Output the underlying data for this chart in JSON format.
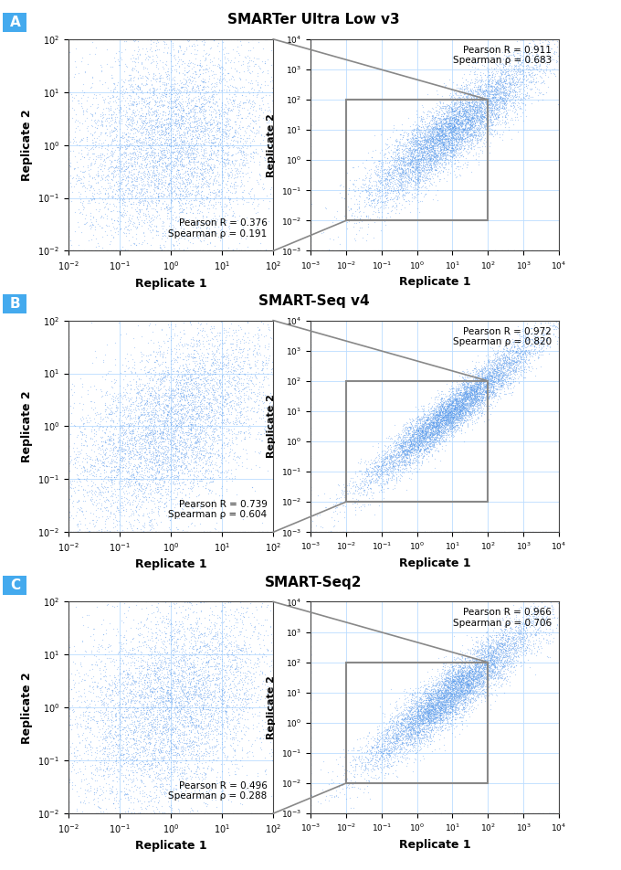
{
  "panels": [
    {
      "label": "A",
      "title": "SMARTer Ultra Low v3",
      "left_pearson": "Pearson R = 0.376",
      "left_spearman": "Spearman ρ = 0.191",
      "right_pearson": "Pearson R = 0.911",
      "right_spearman": "Spearman ρ = 0.683",
      "seed": 42,
      "n_main": 6000,
      "n_zoom": 7000,
      "correlation_main": 0.18,
      "correlation_zoom": 0.88
    },
    {
      "label": "B",
      "title": "SMART-Seq v4",
      "left_pearson": "Pearson R = 0.739",
      "left_spearman": "Spearman ρ = 0.604",
      "right_pearson": "Pearson R = 0.972",
      "right_spearman": "Spearman ρ = 0.820",
      "seed": 123,
      "n_main": 6000,
      "n_zoom": 7000,
      "correlation_main": 0.52,
      "correlation_zoom": 0.95
    },
    {
      "label": "C",
      "title": "SMART-Seq2",
      "left_pearson": "Pearson R = 0.496",
      "left_spearman": "Spearman ρ = 0.288",
      "right_pearson": "Pearson R = 0.966",
      "right_spearman": "Spearman ρ = 0.706",
      "seed": 77,
      "n_main": 6000,
      "n_zoom": 7000,
      "correlation_main": 0.3,
      "correlation_zoom": 0.92
    }
  ],
  "dot_color": "#5599ee",
  "dot_size": 0.8,
  "dot_alpha": 0.4,
  "box_color": "#888888",
  "label_bg": "#44aaee",
  "background_color": "#ffffff",
  "grid_color": "#bbddff",
  "title_fontsize": 11,
  "label_fontsize": 11,
  "axis_label_fontsize": 9,
  "tick_fontsize": 7,
  "annot_fontsize": 7.5
}
